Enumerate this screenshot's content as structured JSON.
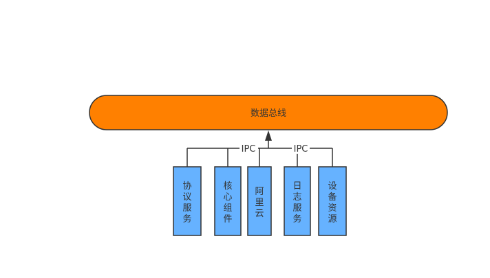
{
  "bus": {
    "label": "数据总线",
    "fill": "#ff8000",
    "stroke": "#333333"
  },
  "connector": {
    "label": "IPC",
    "stroke": "#333333"
  },
  "services": [
    {
      "label": "协议服务",
      "chars": [
        "协",
        "议",
        "服",
        "务"
      ]
    },
    {
      "label": "核心组件",
      "chars": [
        "核",
        "心",
        "组",
        "件"
      ]
    },
    {
      "label": "阿里云",
      "chars": [
        "阿",
        "里",
        "云"
      ]
    },
    {
      "label": "日志服务",
      "chars": [
        "日",
        "志",
        "服",
        "务"
      ]
    },
    {
      "label": "设备资源",
      "chars": [
        "设",
        "备",
        "资",
        "源"
      ]
    }
  ],
  "colors": {
    "service_fill": "#66b2ff",
    "service_stroke": "#333333",
    "text": "#333333"
  }
}
